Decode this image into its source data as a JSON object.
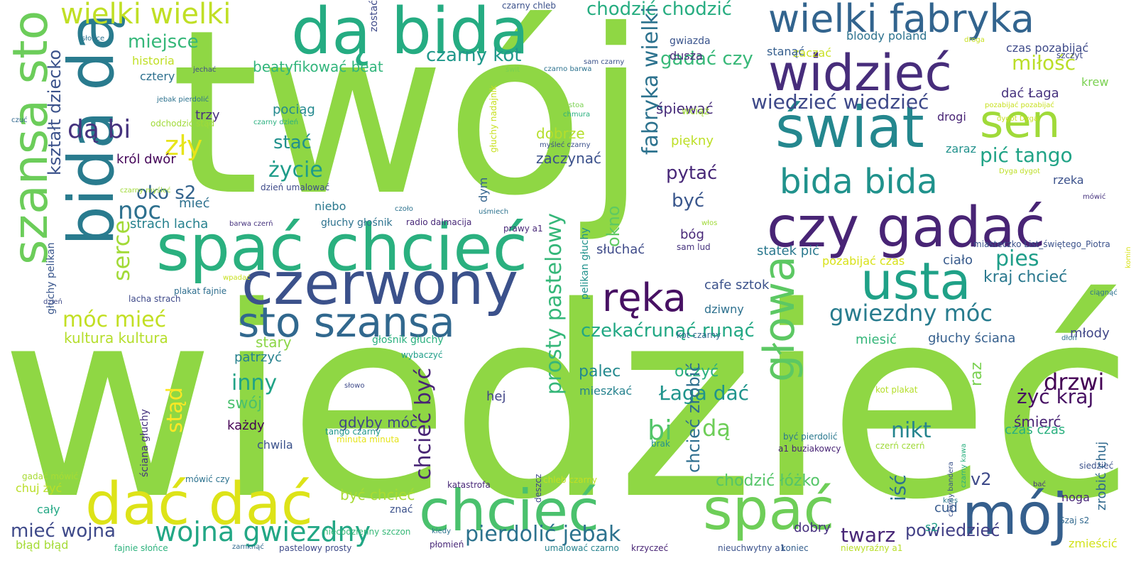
{
  "words": [
    {
      "text": "twój",
      "color": "#8fd744"
    },
    {
      "text": "wiedzieć",
      "color": "#8fd744"
    },
    {
      "text": "spać chcieć",
      "color": "#2ab07f"
    },
    {
      "text": "czerwony",
      "color": "#3b518b"
    },
    {
      "text": "dą bida",
      "color": "#25ac82"
    },
    {
      "text": "bida dą",
      "color": "#297b8e"
    },
    {
      "text": "szansa sto",
      "color": "#6ccd5a"
    },
    {
      "text": "wielki fabryka",
      "color": "#32648e"
    },
    {
      "text": "widzieć",
      "color": "#472d7b"
    },
    {
      "text": "świat",
      "color": "#24878e"
    },
    {
      "text": "sen",
      "color": "#a0da39"
    },
    {
      "text": "bida bida",
      "color": "#20928c"
    },
    {
      "text": "czy gadać",
      "color": "#482475"
    },
    {
      "text": "usta",
      "color": "#1fa187"
    },
    {
      "text": "głowa",
      "color": "#5cc863"
    },
    {
      "text": "ręka",
      "color": "#471063"
    },
    {
      "text": "sto szansa",
      "color": "#31688e"
    },
    {
      "text": "chcieć",
      "color": "#4ac16d"
    },
    {
      "text": "spać",
      "color": "#6ece58"
    },
    {
      "text": "mój",
      "color": "#355f8d"
    },
    {
      "text": "dać dać",
      "color": "#dde318"
    },
    {
      "text": "wojna gwiezdny",
      "color": "#22a785"
    },
    {
      "text": "pierdolić jebak",
      "color": "#2c728e"
    },
    {
      "text": "wielki wielki",
      "color": "#c0df25"
    },
    {
      "text": "chodzić chodzić",
      "color": "#27ad81"
    },
    {
      "text": "czarny kot",
      "color": "#1f988b"
    },
    {
      "text": "gadać czy",
      "color": "#37b878"
    },
    {
      "text": "wiedzieć wiedzieć",
      "color": "#3e4989"
    },
    {
      "text": "miłość",
      "color": "#bade28"
    },
    {
      "text": "pić tango",
      "color": "#20a386"
    },
    {
      "text": "gwiezdny móc",
      "color": "#287c8e"
    },
    {
      "text": "kraj chcieć",
      "color": "#2a788e"
    },
    {
      "text": "pies",
      "color": "#1f9e89"
    },
    {
      "text": "fabryka wielki",
      "color": "#2c728e"
    },
    {
      "text": "dą bi",
      "color": "#46337e"
    },
    {
      "text": "zły",
      "color": "#e7e419"
    },
    {
      "text": "kształt dziecko",
      "color": "#3b528b"
    },
    {
      "text": "miejsce",
      "color": "#35b779"
    },
    {
      "text": "noc",
      "color": "#2d708e"
    },
    {
      "text": "serce",
      "color": "#a2da37"
    },
    {
      "text": "móc mieć",
      "color": "#c2df23"
    },
    {
      "text": "stać",
      "color": "#21918c"
    },
    {
      "text": "życie",
      "color": "#1e9c89"
    },
    {
      "text": "oko s2",
      "color": "#33638d"
    },
    {
      "text": "okno",
      "color": "#5ec962"
    },
    {
      "text": "pytać",
      "color": "#482878"
    },
    {
      "text": "być",
      "color": "#39568c"
    },
    {
      "text": "bi",
      "color": "#52c569"
    },
    {
      "text": "dą",
      "color": "#6ece58"
    },
    {
      "text": "drzwi",
      "color": "#440154"
    },
    {
      "text": "żyć kraj",
      "color": "#471063"
    },
    {
      "text": "v2",
      "color": "#3e4a89"
    },
    {
      "text": "iść",
      "color": "#2c728e"
    },
    {
      "text": "stąd",
      "color": "#fde725"
    },
    {
      "text": "inny",
      "color": "#20a386"
    },
    {
      "text": "twarz",
      "color": "#482777"
    },
    {
      "text": "nikt",
      "color": "#25848e"
    },
    {
      "text": "prosty pastelowy",
      "color": "#35b779"
    },
    {
      "text": "chcieć być",
      "color": "#482475"
    },
    {
      "text": "czekaćrunąć runąć",
      "color": "#22a884"
    },
    {
      "text": "palec",
      "color": "#23898e"
    },
    {
      "text": "oczyć",
      "color": "#2ab07f"
    },
    {
      "text": "Łaga dać",
      "color": "#1f948c"
    },
    {
      "text": "gdyby móc",
      "color": "#3f4788"
    },
    {
      "text": "być chcieć",
      "color": "#a8db34"
    },
    {
      "text": "chodzić łóżko",
      "color": "#54c568"
    },
    {
      "text": "chcieć zrobić",
      "color": "#2e6e8e"
    },
    {
      "text": "powiedzieć",
      "color": "#424086"
    },
    {
      "text": "mieć wojna",
      "color": "#3e4989"
    },
    {
      "text": "beatyfikować beat",
      "color": "#31b57b"
    },
    {
      "text": "strach lacha",
      "color": "#26818e"
    },
    {
      "text": "kultura kultura",
      "color": "#b5de2b"
    },
    {
      "text": "dobrze",
      "color": "#b5de2b"
    },
    {
      "text": "zaczynać",
      "color": "#3b518b"
    },
    {
      "text": "śpiewać",
      "color": "#472c7a"
    },
    {
      "text": "piękny",
      "color": "#bddf26"
    },
    {
      "text": "cafe sztok",
      "color": "#3b528b"
    },
    {
      "text": "słuchać",
      "color": "#3e4a89"
    },
    {
      "text": "dziwny",
      "color": "#2d708e"
    },
    {
      "text": "statek pić",
      "color": "#2a788e"
    },
    {
      "text": "ciało",
      "color": "#375a8c"
    },
    {
      "text": "pozabijać czas",
      "color": "#d8e219"
    },
    {
      "text": "głuchy ściana",
      "color": "#355f8d"
    },
    {
      "text": "miesić",
      "color": "#34b679"
    },
    {
      "text": "młody",
      "color": "#404688"
    },
    {
      "text": "raz",
      "color": "#7ad151"
    },
    {
      "text": "śmierć",
      "color": "#482374"
    },
    {
      "text": "czas czas",
      "color": "#2ab07f"
    },
    {
      "text": "zrobić chuj",
      "color": "#30698e"
    },
    {
      "text": "noga",
      "color": "#482677"
    },
    {
      "text": "cud",
      "color": "#375b8d"
    },
    {
      "text": "s2",
      "color": "#1f9f88"
    },
    {
      "text": "dobry",
      "color": "#46307e"
    },
    {
      "text": "zmieścić",
      "color": "#d2e21b"
    },
    {
      "text": "historia",
      "color": "#c0df25"
    },
    {
      "text": "cztery",
      "color": "#2d708e"
    },
    {
      "text": "trzy",
      "color": "#472f7d"
    },
    {
      "text": "pociąg",
      "color": "#23898e"
    },
    {
      "text": "król dwór",
      "color": "#450559"
    },
    {
      "text": "mieć",
      "color": "#2d708e"
    },
    {
      "text": "niebo",
      "color": "#2a788e"
    },
    {
      "text": "stary",
      "color": "#8bd646"
    },
    {
      "text": "patrzyć",
      "color": "#26818e"
    },
    {
      "text": "swój",
      "color": "#4ac16d"
    },
    {
      "text": "każdy",
      "color": "#440154"
    },
    {
      "text": "chwila",
      "color": "#3b528b"
    },
    {
      "text": "hej",
      "color": "#414487"
    },
    {
      "text": "mieszkać",
      "color": "#26828e"
    },
    {
      "text": "dym",
      "color": "#33638d"
    },
    {
      "text": "bóg",
      "color": "#482878"
    },
    {
      "text": "wciąż",
      "color": "#a0da39"
    },
    {
      "text": "dusza",
      "color": "#472a7a"
    },
    {
      "text": "gwiazda",
      "color": "#3a548c"
    },
    {
      "text": "zaczać",
      "color": "#c8e020"
    },
    {
      "text": "bloody poland",
      "color": "#2c728e"
    },
    {
      "text": "stanąć",
      "color": "#355e8d"
    },
    {
      "text": "czas pozabijać",
      "color": "#3e4a89"
    },
    {
      "text": "krew",
      "color": "#7ad151"
    },
    {
      "text": "dać Łaga",
      "color": "#46327e"
    },
    {
      "text": "drogi",
      "color": "#482475"
    },
    {
      "text": "zaraz",
      "color": "#21918c"
    },
    {
      "text": "rzeka",
      "color": "#3b518b"
    },
    {
      "text": "zostać",
      "color": "#3e4a89"
    },
    {
      "text": "głuchy głośnik",
      "color": "#2c728e"
    },
    {
      "text": "radio dalmacija",
      "color": "#482878"
    },
    {
      "text": "chuj żyć",
      "color": "#bade28"
    },
    {
      "text": "cały",
      "color": "#22a884"
    },
    {
      "text": "błąd błąd",
      "color": "#a5db36"
    },
    {
      "text": "głuchy pelikan",
      "color": "#39568c"
    },
    {
      "text": "ściana głuchy",
      "color": "#46337e"
    },
    {
      "text": "pelikan głuchy",
      "color": "#20928c"
    },
    {
      "text": "głośnik głuchy",
      "color": "#2ab07f"
    },
    {
      "text": "tango czarny",
      "color": "#1f978b"
    },
    {
      "text": "minuta minuta",
      "color": "#e5e419"
    },
    {
      "text": "znać",
      "color": "#3b518b"
    },
    {
      "text": "katastrofa",
      "color": "#482878"
    },
    {
      "text": "chleb czarny",
      "color": "#c2df23"
    },
    {
      "text": "niecodzienny szczon",
      "color": "#37b878"
    },
    {
      "text": "plakat fajnie",
      "color": "#2e6e8e"
    },
    {
      "text": "lacha strach",
      "color": "#3e4989"
    },
    {
      "text": "gadać mówić",
      "color": "#a8db34"
    },
    {
      "text": "mówić czy",
      "color": "#2c728e"
    },
    {
      "text": "fajnie słońce",
      "color": "#2db27d"
    },
    {
      "text": "pastelowy prosty",
      "color": "#3e4a89"
    },
    {
      "text": "umalować czarno",
      "color": "#26828e"
    },
    {
      "text": "krzyczeć",
      "color": "#482475"
    },
    {
      "text": "nieuchwytny a1",
      "color": "#3b528b"
    },
    {
      "text": "koniec",
      "color": "#355f8d"
    },
    {
      "text": "niewyraźny a1",
      "color": "#b8de29"
    },
    {
      "text": "płomień",
      "color": "#482878"
    },
    {
      "text": "kiedy",
      "color": "#2c728e"
    },
    {
      "text": "deszcz",
      "color": "#3e4989"
    },
    {
      "text": "zamknąć",
      "color": "#31688e"
    },
    {
      "text": "kres",
      "color": "#2a788e"
    },
    {
      "text": "czarny bandera",
      "color": "#3b528b"
    },
    {
      "text": "bać",
      "color": "#46337e"
    },
    {
      "text": "Szaj s2",
      "color": "#31688e"
    },
    {
      "text": "siedzieć",
      "color": "#3b518b"
    },
    {
      "text": "dłoń",
      "color": "#2c728e"
    },
    {
      "text": "być pierdolić",
      "color": "#2a788e"
    },
    {
      "text": "a1 buziakowcy",
      "color": "#482475"
    },
    {
      "text": "czerń czerń",
      "color": "#a0da39"
    },
    {
      "text": "czarny kawa",
      "color": "#2ab07f"
    },
    {
      "text": "kot plakat",
      "color": "#b5de2b"
    },
    {
      "text": "kot czarny",
      "color": "#31688e"
    },
    {
      "text": "brak",
      "color": "#21918c"
    },
    {
      "text": "słowo",
      "color": "#3e4a89"
    },
    {
      "text": "wybaczyć",
      "color": "#1f9e89"
    },
    {
      "text": "uśmiech",
      "color": "#2c728e"
    },
    {
      "text": "prawy a1",
      "color": "#482878"
    },
    {
      "text": "myśleć czarny",
      "color": "#3b518b"
    },
    {
      "text": "stoa",
      "color": "#7ad151"
    },
    {
      "text": "chmura",
      "color": "#2ab07f"
    },
    {
      "text": "włos",
      "color": "#a0da39"
    },
    {
      "text": "sam lud",
      "color": "#46337e"
    },
    {
      "text": "miasteczko List_świętego_Piotra",
      "color": "#3b528b"
    },
    {
      "text": "komin",
      "color": "#d8e219"
    },
    {
      "text": "ciągnąć",
      "color": "#2c728e"
    },
    {
      "text": "mówić",
      "color": "#46337e"
    },
    {
      "text": "Dyga dygot",
      "color": "#bddf26"
    },
    {
      "text": "dygot Dyga",
      "color": "#c8e020"
    },
    {
      "text": "pozabijać pozabijać",
      "color": "#c8e020"
    },
    {
      "text": "szczyt",
      "color": "#3e4a89"
    },
    {
      "text": "droga",
      "color": "#c8e020"
    },
    {
      "text": "czarno barwa",
      "color": "#2c728e"
    },
    {
      "text": "sam czarny",
      "color": "#3b528b"
    },
    {
      "text": "świt",
      "color": "#7ad151"
    },
    {
      "text": "czarny chleb",
      "color": "#3b518b"
    },
    {
      "text": "głuchy nadajnik",
      "color": "#c8e020"
    },
    {
      "text": "czarny dzień",
      "color": "#2ab07f"
    },
    {
      "text": "jebak pierdolić",
      "color": "#2c728e"
    },
    {
      "text": "odchodzić stąd",
      "color": "#a0da39"
    },
    {
      "text": "czarny myśleć",
      "color": "#a0da39"
    },
    {
      "text": "dzień umalować",
      "color": "#3e4a89"
    },
    {
      "text": "czoło",
      "color": "#2c728e"
    },
    {
      "text": "barwa czerń",
      "color": "#46337e"
    },
    {
      "text": "wpadać",
      "color": "#c8e020"
    },
    {
      "text": "dzień",
      "color": "#3e4a89"
    },
    {
      "text": "czuć",
      "color": "#31688e"
    },
    {
      "text": "słońce",
      "color": "#2c728e"
    },
    {
      "text": "jechać",
      "color": "#3e4a89"
    }
  ]
}
